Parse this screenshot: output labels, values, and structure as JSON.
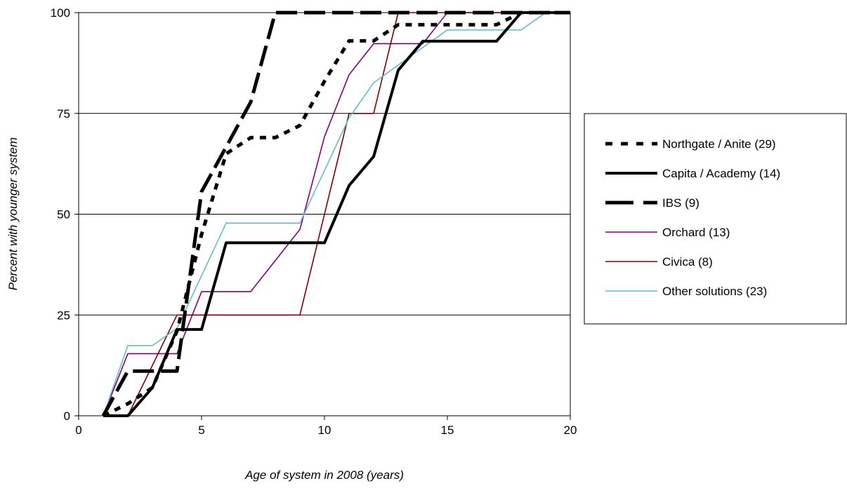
{
  "chart_data": {
    "type": "line",
    "title": "",
    "xlabel": "Age of system in 2008 (years)",
    "ylabel": "Percent with younger system",
    "xlim": [
      0,
      20
    ],
    "ylim": [
      0,
      100
    ],
    "x_ticks": [
      "0",
      "5",
      "10",
      "15",
      "20"
    ],
    "y_ticks": [
      "0",
      "25",
      "50",
      "75",
      "100"
    ],
    "grid": "horizontal",
    "legend_position": "right",
    "series": [
      {
        "name": "Northgate / Anite (29)",
        "color": "#000000",
        "style": "short-dash-bold",
        "points": [
          [
            1,
            0
          ],
          [
            2,
            3
          ],
          [
            3,
            7
          ],
          [
            4,
            21
          ],
          [
            5,
            45
          ],
          [
            6,
            65
          ],
          [
            7,
            69
          ],
          [
            8,
            69
          ],
          [
            9,
            72
          ],
          [
            10,
            83
          ],
          [
            11,
            93
          ],
          [
            12,
            93
          ],
          [
            13,
            97
          ],
          [
            17,
            97
          ],
          [
            18,
            100
          ],
          [
            20,
            100
          ]
        ]
      },
      {
        "name": "Capita / Academy (14)",
        "color": "#000000",
        "style": "solid-bold",
        "points": [
          [
            1,
            0
          ],
          [
            2,
            0
          ],
          [
            3,
            7
          ],
          [
            4,
            21.4
          ],
          [
            5,
            21.4
          ],
          [
            6,
            42.9
          ],
          [
            10,
            42.9
          ],
          [
            11,
            57.1
          ],
          [
            12,
            64.3
          ],
          [
            13,
            85.7
          ],
          [
            14,
            92.9
          ],
          [
            17,
            92.9
          ],
          [
            18,
            100
          ],
          [
            20,
            100
          ]
        ]
      },
      {
        "name": "IBS (9)",
        "color": "#000000",
        "style": "long-dash-bold",
        "points": [
          [
            1,
            0
          ],
          [
            2,
            11.1
          ],
          [
            4,
            11.1
          ],
          [
            5,
            55.6
          ],
          [
            6,
            66.7
          ],
          [
            7,
            77.8
          ],
          [
            8,
            100
          ],
          [
            20,
            100
          ]
        ]
      },
      {
        "name": "Orchard (13)",
        "color": "#800080",
        "style": "solid-thin",
        "points": [
          [
            1,
            0
          ],
          [
            2,
            15.4
          ],
          [
            4,
            15.4
          ],
          [
            5,
            30.8
          ],
          [
            7,
            30.8
          ],
          [
            9,
            46.2
          ],
          [
            10,
            69.2
          ],
          [
            11,
            84.6
          ],
          [
            12,
            92.3
          ],
          [
            14,
            92.3
          ],
          [
            15,
            100
          ],
          [
            20,
            100
          ]
        ]
      },
      {
        "name": "Civica (8)",
        "color": "#800000",
        "style": "solid-thin",
        "points": [
          [
            1,
            0
          ],
          [
            2,
            0
          ],
          [
            4,
            25
          ],
          [
            9,
            25
          ],
          [
            11,
            75
          ],
          [
            12,
            75
          ],
          [
            13,
            100
          ],
          [
            20,
            100
          ]
        ]
      },
      {
        "name": "Other solutions (23)",
        "color": "#5fbfcc",
        "style": "solid-thin",
        "points": [
          [
            1,
            0
          ],
          [
            2,
            17.4
          ],
          [
            3,
            17.4
          ],
          [
            4,
            21.7
          ],
          [
            6,
            47.8
          ],
          [
            9,
            47.8
          ],
          [
            11,
            73.9
          ],
          [
            12,
            82.6
          ],
          [
            13,
            87
          ],
          [
            15,
            95.7
          ],
          [
            18,
            95.7
          ],
          [
            19,
            100
          ],
          [
            20,
            100
          ]
        ]
      }
    ]
  }
}
